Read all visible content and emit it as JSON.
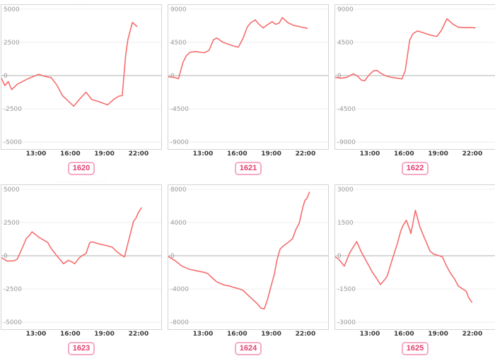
{
  "page": {
    "background": "#ffffff"
  },
  "colors": {
    "line": "#f56c6c",
    "gridline": "#ececec",
    "zero_line": "#b0b0b0",
    "panel_border": "#d4d4d4",
    "y_label": "#9b9b9b",
    "x_label": "#3a3a3a",
    "badge_border": "#f6aac6",
    "badge_text": "#e2406f",
    "badge_bg": "#ffffff"
  },
  "x_axis": {
    "ticks": [
      "13:00",
      "16:00",
      "19:00",
      "22:00"
    ],
    "tick_hours": [
      13,
      16,
      19,
      22
    ],
    "hour_range": [
      9.9,
      24
    ]
  },
  "chart_data": [
    {
      "type": "line",
      "badge_label": "1620",
      "title": "",
      "partial_title": "· ·",
      "xlabel": "",
      "ylabel": "",
      "legend": "none",
      "grid": "horizontal-only",
      "ylim": [
        -5000,
        5000
      ],
      "yticks": [
        "5000",
        "2500",
        "0",
        "-2500",
        "-5000"
      ],
      "xticks": [
        "13:00",
        "16:00",
        "19:00",
        "22:00"
      ],
      "series": [
        {
          "name": "1620",
          "x_hours": [
            9.9,
            10.2,
            10.5,
            10.8,
            11.3,
            12.2,
            13.2,
            13.7,
            14.3,
            14.8,
            15.3,
            15.8,
            16.3,
            17.0,
            17.4,
            17.9,
            18.5,
            19.3,
            19.9,
            20.3,
            20.6,
            20.9,
            21.1,
            21.5,
            21.9
          ],
          "values": [
            -200,
            -750,
            -450,
            -1050,
            -650,
            -250,
            100,
            -50,
            -150,
            -700,
            -1500,
            -1900,
            -2300,
            -1600,
            -1250,
            -1800,
            -1950,
            -2200,
            -1750,
            -1550,
            -1500,
            1500,
            2700,
            4000,
            3700
          ]
        }
      ]
    },
    {
      "type": "line",
      "badge_label": "1621",
      "title": "",
      "partial_title": "",
      "xlabel": "",
      "ylabel": "",
      "legend": "none",
      "grid": "horizontal-only",
      "ylim": [
        -9000,
        9000
      ],
      "yticks": [
        "9000",
        "4500",
        "0",
        "-4500",
        "-9000"
      ],
      "xticks": [
        "13:00",
        "16:00",
        "19:00",
        "22:00"
      ],
      "series": [
        {
          "name": "1621",
          "x_hours": [
            9.9,
            10.4,
            10.8,
            11.2,
            11.5,
            11.8,
            12.3,
            12.8,
            13.1,
            13.5,
            13.9,
            14.2,
            14.7,
            15.2,
            15.8,
            16.1,
            16.5,
            16.9,
            17.2,
            17.6,
            17.9,
            18.3,
            18.6,
            19.1,
            19.4,
            19.7,
            20.0,
            20.5,
            21.0,
            21.6,
            22.2
          ],
          "values": [
            -150,
            -250,
            -400,
            1800,
            2700,
            3150,
            3250,
            3150,
            3100,
            3400,
            4850,
            5100,
            4550,
            4250,
            3950,
            3850,
            5000,
            6600,
            7150,
            7550,
            7000,
            6450,
            6800,
            7300,
            6950,
            7100,
            7850,
            7150,
            6800,
            6600,
            6400
          ]
        }
      ]
    },
    {
      "type": "line",
      "badge_label": "1622",
      "title": "",
      "partial_title": "",
      "xlabel": "",
      "ylabel": "",
      "legend": "none",
      "grid": "horizontal-only",
      "ylim": [
        -9000,
        9000
      ],
      "yticks": [
        "9000",
        "4500",
        "0",
        "-4500",
        "-9000"
      ],
      "xticks": [
        "13:00",
        "16:00",
        "19:00",
        "22:00"
      ],
      "series": [
        {
          "name": "1622",
          "x_hours": [
            9.9,
            10.4,
            10.9,
            11.5,
            11.9,
            12.2,
            12.5,
            12.9,
            13.3,
            13.6,
            13.9,
            14.4,
            14.9,
            15.4,
            15.8,
            16.1,
            16.5,
            16.8,
            17.2,
            17.7,
            18.3,
            18.9,
            19.3,
            19.8,
            20.3,
            20.8,
            21.4,
            22.0,
            22.3
          ],
          "values": [
            -250,
            -350,
            -250,
            250,
            -100,
            -600,
            -700,
            100,
            650,
            700,
            350,
            -50,
            -250,
            -350,
            -450,
            650,
            4850,
            5700,
            6050,
            5800,
            5500,
            5300,
            6100,
            7700,
            7000,
            6550,
            6500,
            6500,
            6450
          ]
        }
      ]
    },
    {
      "type": "line",
      "badge_label": "1623",
      "title": "",
      "partial_title": "·· ····· ····· ·· ··",
      "xlabel": "",
      "ylabel": "",
      "legend": "none",
      "grid": "horizontal-only",
      "ylim": [
        -5000,
        5000
      ],
      "yticks": [
        "5000",
        "2500",
        "0",
        "-2500",
        "-5000"
      ],
      "xticks": [
        "13:00",
        "16:00",
        "19:00",
        "22:00"
      ],
      "series": [
        {
          "name": "1623",
          "x_hours": [
            9.9,
            10.4,
            11.0,
            11.3,
            11.8,
            12.1,
            12.4,
            12.6,
            13.2,
            13.7,
            14.0,
            14.3,
            14.8,
            15.2,
            15.4,
            15.8,
            16.1,
            16.4,
            16.8,
            17.0,
            17.4,
            17.7,
            17.9,
            18.6,
            19.3,
            19.7,
            20.1,
            20.5,
            20.8,
            21.2,
            21.6,
            21.8,
            22.0,
            22.3
          ],
          "values": [
            -150,
            -400,
            -380,
            -250,
            700,
            1300,
            1550,
            1800,
            1400,
            1150,
            1000,
            550,
            0,
            -400,
            -600,
            -350,
            -450,
            -600,
            -150,
            -20,
            180,
            950,
            1050,
            880,
            750,
            650,
            320,
            60,
            -80,
            1250,
            2600,
            2800,
            3200,
            3600
          ]
        }
      ]
    },
    {
      "type": "line",
      "badge_label": "1624",
      "title": "",
      "partial_title": "· ·",
      "xlabel": "",
      "ylabel": "",
      "legend": "none",
      "grid": "horizontal-only",
      "ylim": [
        -8000,
        8000
      ],
      "yticks": [
        "8000",
        "4000",
        "0",
        "-4000",
        "-8000"
      ],
      "xticks": [
        "13:00",
        "16:00",
        "19:00",
        "22:00"
      ],
      "series": [
        {
          "name": "1624",
          "x_hours": [
            9.9,
            10.5,
            11.1,
            11.7,
            12.4,
            13.0,
            13.4,
            13.9,
            14.2,
            14.8,
            15.3,
            15.8,
            16.2,
            16.5,
            17.0,
            17.4,
            17.8,
            18.1,
            18.4,
            18.7,
            19.0,
            19.3,
            19.5,
            19.65,
            19.8,
            20.1,
            20.6,
            20.9,
            21.2,
            21.5,
            21.8,
            22.0,
            22.2,
            22.4
          ],
          "values": [
            -100,
            -600,
            -1250,
            -1600,
            -1820,
            -1970,
            -2150,
            -2800,
            -3150,
            -3500,
            -3650,
            -3850,
            -4000,
            -4150,
            -4800,
            -5300,
            -5800,
            -6300,
            -6400,
            -5200,
            -3650,
            -2200,
            -650,
            100,
            800,
            1200,
            1700,
            2050,
            3150,
            3950,
            5750,
            6650,
            6950,
            7650
          ]
        }
      ]
    },
    {
      "type": "line",
      "badge_label": "1625",
      "title": "",
      "partial_title": "",
      "xlabel": "",
      "ylabel": "",
      "legend": "none",
      "grid": "horizontal-only",
      "ylim": [
        -3000,
        3000
      ],
      "yticks": [
        "3000",
        "1500",
        "0",
        "-1500",
        "-3000"
      ],
      "xticks": [
        "13:00",
        "16:00",
        "19:00",
        "22:00"
      ],
      "series": [
        {
          "name": "1625",
          "x_hours": [
            9.9,
            10.2,
            10.7,
            11.2,
            11.8,
            12.2,
            12.8,
            13.2,
            13.6,
            13.9,
            14.3,
            14.5,
            15.0,
            15.4,
            15.7,
            15.9,
            16.2,
            16.5,
            16.6,
            17.0,
            17.4,
            17.9,
            18.3,
            18.6,
            19.0,
            19.4,
            19.7,
            20.1,
            20.5,
            20.8,
            21.2,
            21.5,
            21.7,
            22.0
          ],
          "values": [
            -50,
            -150,
            -470,
            150,
            640,
            180,
            -380,
            -750,
            -1050,
            -1300,
            -1070,
            -920,
            -90,
            540,
            1110,
            1360,
            1600,
            1170,
            1000,
            2050,
            1300,
            690,
            215,
            75,
            20,
            -50,
            -400,
            -780,
            -1070,
            -1370,
            -1500,
            -1600,
            -1870,
            -2100
          ]
        }
      ]
    }
  ]
}
